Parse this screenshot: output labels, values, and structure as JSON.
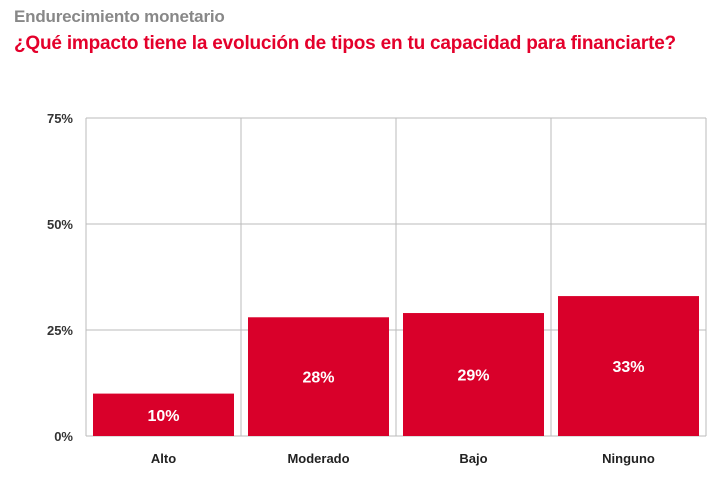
{
  "header": {
    "subtitle": "Endurecimiento monetario",
    "title": "¿Qué impacto tiene la evolución de tipos en tu capacidad para financiarte?"
  },
  "colors": {
    "bar": "#d9002a",
    "accent_title": "#e4002b",
    "grid": "#bbbbbb"
  },
  "chart_data": {
    "type": "bar",
    "title": "¿Qué impacto tiene la evolución de tipos en tu capacidad para financiarte?",
    "subtitle": "Endurecimiento monetario",
    "categories": [
      "Alto",
      "Moderado",
      "Bajo",
      "Ninguno"
    ],
    "values": [
      10,
      28,
      29,
      33
    ],
    "data_labels": [
      "10%",
      "28%",
      "29%",
      "33%"
    ],
    "ylim": [
      0,
      75
    ],
    "yticks": [
      0,
      25,
      50,
      75
    ],
    "ytick_labels": [
      "0%",
      "25%",
      "50%",
      "75%"
    ],
    "grid": true
  }
}
